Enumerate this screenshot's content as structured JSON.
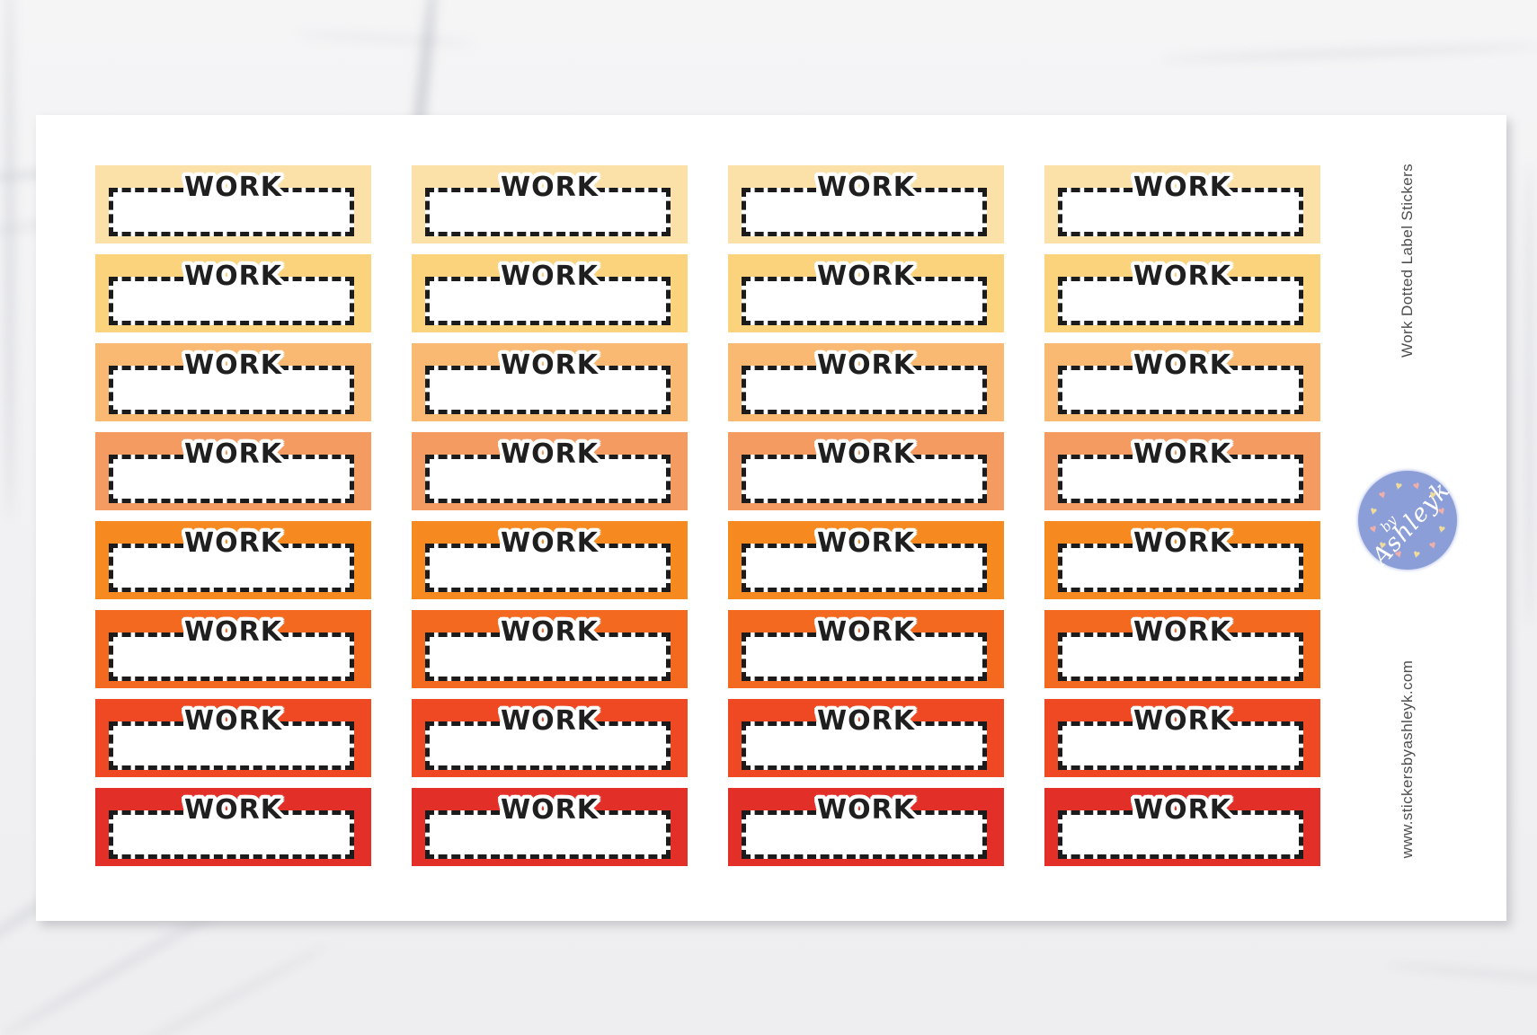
{
  "product": {
    "side_title": "Work Dotted Label Stickers",
    "website": "www.stickersbyashleyk.com"
  },
  "logo": {
    "text_line1": "by",
    "text_line2": "Ashleyk",
    "circle_color": "#8C9ED8",
    "heart_colors": [
      "#EFDC9C",
      "#F0AFA9"
    ],
    "heart_count": 12,
    "heart_glyph": "♥"
  },
  "stickers": {
    "label": "WORK",
    "columns": 4,
    "rows": [
      {
        "name": "row-1",
        "color": "#FBE0A8"
      },
      {
        "name": "row-2",
        "color": "#FBD37D"
      },
      {
        "name": "row-3",
        "color": "#F9B973"
      },
      {
        "name": "row-4",
        "color": "#F49B62"
      },
      {
        "name": "row-5",
        "color": "#F68A21"
      },
      {
        "name": "row-6",
        "color": "#F2691F"
      },
      {
        "name": "row-7",
        "color": "#EE4923"
      },
      {
        "name": "row-8",
        "color": "#E23029"
      }
    ]
  }
}
